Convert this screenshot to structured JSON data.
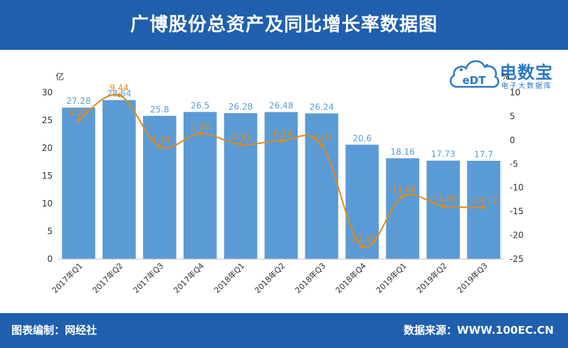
{
  "header": {
    "title": "广博股份总资产及同比增长率数据图"
  },
  "footer": {
    "left": "图表编制：网经社",
    "right": "数据来源：WWW.100EC.CN"
  },
  "logo": {
    "brand": "电数宝",
    "sub": "电子大数据库",
    "cloud_text": "eDT"
  },
  "colors": {
    "header": "#1f5fae",
    "bar": "#5b9bd5",
    "line": "#e08a18",
    "bar_label": "#5b9bd5",
    "line_label": "#e08a18"
  },
  "chart_data": {
    "type": "bar",
    "categories": [
      "2017年Q1",
      "2017年Q2",
      "2017年Q3",
      "2017年Q4",
      "2018年Q1",
      "2018年Q2",
      "2018年Q3",
      "2018年Q4",
      "2019年Q1",
      "2019年Q2",
      "2019年Q3"
    ],
    "left_axis": {
      "unit": "亿",
      "ylim": [
        0,
        30
      ],
      "ticks": [
        0,
        5,
        10,
        15,
        20,
        25,
        30
      ]
    },
    "right_axis": {
      "unit": "%",
      "ylim": [
        -25,
        10
      ],
      "ticks": [
        -25,
        -20,
        -15,
        -10,
        -5,
        0,
        5,
        10
      ]
    },
    "series": [
      {
        "type": "bar",
        "axis": "left",
        "values": [
          27.28,
          28.64,
          25.8,
          26.5,
          26.28,
          26.48,
          26.24,
          20.6,
          18.16,
          17.73,
          17.7
        ],
        "labels": [
          "27.28",
          "28.64",
          "25.8",
          "26.5",
          "26.28",
          "26.48",
          "26.24",
          "20.6",
          "18.16",
          "17.73",
          "17.7"
        ]
      },
      {
        "type": "line",
        "axis": "right",
        "values": [
          4.23,
          9.44,
          -1.34,
          1.36,
          -0.91,
          -0.14,
          -1.07,
          -22.32,
          -11.88,
          -13.89,
          -14.12
        ],
        "labels": [
          "4.23",
          "9.44",
          "-1.34",
          "1.36",
          "-0.91",
          "-0.14",
          "-1.07",
          "-22.32",
          "-11.88",
          "-13.89",
          "-14.12"
        ]
      }
    ],
    "grid": false
  }
}
